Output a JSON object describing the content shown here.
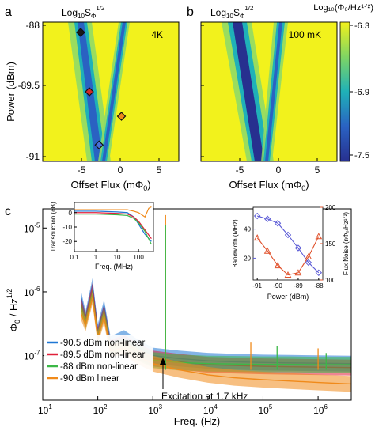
{
  "colors": {
    "cmap_low": "#27308f",
    "cmap_mid": "#1fb1b8",
    "cmap_high": "#f2f21c",
    "bw_color": "#5b5bd6",
    "fn_color": "#e0502a",
    "s_m905": "#1f77d4",
    "s_m895": "#e0203a",
    "s_m88": "#3cb847",
    "s_m90": "#f08a1a"
  },
  "panel_a": {
    "letter": "a",
    "title_base": "Log",
    "title_sub": "10",
    "title_S": "S",
    "title_phi": "Φ",
    "title_exp": "1/2",
    "temp_label": "4K",
    "ylabel": "Power (dBm)",
    "xlabel_main": "Offset Flux (mΦ",
    "xlabel_sub": "0",
    "xlabel_close": ")",
    "yticks": [
      "-88",
      "-89.5",
      "-91"
    ],
    "xticks": [
      "-5",
      "0",
      "5"
    ]
  },
  "panel_b": {
    "letter": "b",
    "title_base": "Log",
    "title_sub": "10",
    "title_S": "S",
    "title_phi": "Φ",
    "title_exp": "1/2",
    "temp_label": "100 mK",
    "xlabel_main": "Offset Flux (mΦ",
    "xlabel_sub": "0",
    "xlabel_close": ")",
    "xticks": [
      "-5",
      "0",
      "5"
    ]
  },
  "colorbar": {
    "title": "Log₁₀(Φ₀/Hz¹ᐟ²)",
    "ticks": [
      "-6.3",
      "-6.9",
      "-7.5"
    ]
  },
  "panel_c": {
    "letter": "c",
    "ylabel_main": "Φ",
    "ylabel_sub": "0",
    "ylabel_rest": " / Hz",
    "ylabel_exp": "1/2",
    "xlabel": "Freq. (Hz)",
    "yticks": [
      {
        "base": "10",
        "exp": "-5",
        "value": 1e-05
      },
      {
        "base": "10",
        "exp": "-6",
        "value": 1e-06
      },
      {
        "base": "10",
        "exp": "-7",
        "value": 1e-07
      }
    ],
    "xticks": [
      {
        "base": "10",
        "exp": "1",
        "value": 10
      },
      {
        "base": "10",
        "exp": "2",
        "value": 100
      },
      {
        "base": "10",
        "exp": "3",
        "value": 1000
      },
      {
        "base": "10",
        "exp": "4",
        "value": 10000
      },
      {
        "base": "10",
        "exp": "5",
        "value": 100000
      },
      {
        "base": "10",
        "exp": "6",
        "value": 1000000
      }
    ],
    "annotation": "Excitation at 1.7 kHz",
    "legend": [
      {
        "name": "-90.5 dBm non-linear",
        "color": "#1f77d4"
      },
      {
        "name": "-89.5 dBm non-linear",
        "color": "#e0203a"
      },
      {
        "name": "-88 dBm non-linear",
        "color": "#3cb847"
      },
      {
        "name": "-90 dBm linear",
        "color": "#f08a1a"
      }
    ]
  },
  "inset_left": {
    "ylabel": "Transduction (dB)",
    "xlabel": "Freq. (MHz)",
    "yticks": [
      "0",
      "-10",
      "-20"
    ],
    "xticks": [
      "0.1",
      "1",
      "10",
      "100"
    ]
  },
  "inset_right": {
    "ylabel_left": "Bandwidth (MHz)",
    "ylabel_right": "Flux Noise (nΦ₀/Hz¹ᐟ²)",
    "xlabel": "Power (dBm)",
    "yticks_left": [
      "40",
      "20"
    ],
    "yticks_right": [
      "200",
      "150",
      "100"
    ],
    "xticks": [
      "-91",
      "-90",
      "-89",
      "-88"
    ]
  },
  "chart_data": [
    {
      "type": "heatmap",
      "title": "Log10 SΦ^1/2",
      "xlabel": "Offset Flux (mΦ0)",
      "ylabel": "Power (dBm)",
      "xlim": [
        -8,
        6
      ],
      "ylim": [
        -91.2,
        -87.8
      ],
      "colorbar_range": [
        -7.6,
        -6.3
      ],
      "annotation": "4K",
      "markers": [
        {
          "x": -4.1,
          "y": -88.05,
          "color": "#1a1a1a"
        },
        {
          "x": -3.2,
          "y": -89.5,
          "color": "#d12a2a"
        },
        {
          "x": 0.1,
          "y": -90.1,
          "color": "#f08a1a"
        },
        {
          "x": -2.2,
          "y": -90.8,
          "color": "#4a6fd8"
        }
      ]
    },
    {
      "type": "heatmap",
      "title": "Log10 SΦ^1/2",
      "xlabel": "Offset Flux (mΦ0)",
      "xlim": [
        -8,
        6
      ],
      "ylim": [
        -91.2,
        -87.8
      ],
      "colorbar_range": [
        -7.6,
        -6.3
      ],
      "annotation": "100 mK"
    },
    {
      "type": "line",
      "xlabel": "Freq. (Hz)",
      "ylabel": "Φ0 / Hz^1/2",
      "xscale": "log",
      "yscale": "log",
      "xlim": [
        10,
        4000000
      ],
      "ylim": [
        2e-08,
        2e-05
      ],
      "annotation": "Excitation at 1.7 kHz",
      "series": [
        {
          "name": "-90.5 dBm non-linear",
          "x": [
            50,
            60,
            80,
            100,
            130,
            170,
            300,
            500,
            1000,
            3000,
            10000,
            30000,
            100000,
            300000,
            1000000,
            4000000
          ],
          "y": [
            8e-07,
            4e-07,
            1.3e-06,
            2.5e-07,
            6e-07,
            1.6e-07,
            2e-07,
            1.4e-07,
            1e-07,
            9e-08,
            8.3e-08,
            8e-08,
            7.8e-08,
            7.7e-08,
            7.6e-08,
            7.5e-08
          ]
        },
        {
          "name": "-89.5 dBm non-linear",
          "x": [
            50,
            60,
            80,
            100,
            130,
            170,
            300,
            500,
            1000,
            3000,
            10000,
            30000,
            100000,
            300000,
            1000000,
            4000000
          ],
          "y": [
            6.5e-07,
            3.5e-07,
            1.1e-06,
            2.2e-07,
            5e-07,
            1.4e-07,
            1.7e-07,
            1.2e-07,
            9e-08,
            8e-08,
            7.2e-08,
            7e-08,
            6.8e-08,
            6.7e-08,
            6.6e-08,
            6.5e-08
          ]
        },
        {
          "name": "-88 dBm non-linear",
          "x": [
            50,
            60,
            80,
            100,
            130,
            170,
            300,
            500,
            1000,
            3000,
            10000,
            30000,
            100000,
            300000,
            1000000,
            4000000
          ],
          "y": [
            5.5e-07,
            3.2e-07,
            9e-07,
            2e-07,
            4.5e-07,
            1.3e-07,
            1.5e-07,
            1.15e-07,
            8.5e-08,
            7.8e-08,
            7.5e-08,
            7.4e-08,
            7.3e-08,
            7.3e-08,
            7.2e-08,
            7.2e-08
          ]
        },
        {
          "name": "-90 dBm linear",
          "x": [
            50,
            60,
            80,
            100,
            130,
            170,
            300,
            500,
            1000,
            3000,
            10000,
            30000,
            100000,
            300000,
            1000000,
            4000000
          ],
          "y": [
            4.5e-07,
            3e-07,
            8e-07,
            1.9e-07,
            4e-07,
            1.2e-07,
            1.3e-07,
            1e-07,
            7.5e-08,
            6e-08,
            5e-08,
            4.5e-08,
            4.2e-08,
            4e-08,
            3.8e-08,
            3.6e-08
          ]
        }
      ],
      "spikes": [
        {
          "x": 1700,
          "y": 1.6e-05,
          "color": "#f08a1a"
        },
        {
          "x": 1700,
          "y": 1.1e-05,
          "color": "#3cb847"
        },
        {
          "x": 60000,
          "y": 1.6e-07,
          "color": "#f08a1a"
        },
        {
          "x": 180000,
          "y": 1.4e-07,
          "color": "#3cb847"
        },
        {
          "x": 1000000,
          "y": 1.3e-07,
          "color": "#f08a1a"
        },
        {
          "x": 1400000,
          "y": 1.1e-07,
          "color": "#3cb847"
        }
      ]
    },
    {
      "type": "line",
      "xlabel": "Freq. (MHz)",
      "ylabel": "Transduction (dB)",
      "xscale": "log",
      "xlim": [
        0.1,
        500
      ],
      "ylim": [
        -27,
        7
      ],
      "series": [
        {
          "color": "#1f77d4",
          "x": [
            0.1,
            1,
            10,
            30,
            60,
            100,
            200,
            400
          ],
          "y": [
            1,
            1,
            0.5,
            0,
            -3,
            -8,
            -15,
            -20
          ]
        },
        {
          "color": "#e0203a",
          "x": [
            0.1,
            1,
            10,
            30,
            60,
            100,
            200,
            400
          ],
          "y": [
            0,
            0,
            -0.5,
            -1,
            -3,
            -6,
            -12,
            -18
          ]
        },
        {
          "color": "#3cb847",
          "x": [
            0.1,
            1,
            10,
            30,
            60,
            100,
            200,
            400
          ],
          "y": [
            -1,
            -1,
            -1.5,
            -2,
            -4,
            -7,
            -13,
            -22
          ]
        },
        {
          "color": "#f08a1a",
          "x": [
            0.1,
            1,
            10,
            30,
            60,
            100,
            200,
            300,
            400
          ],
          "y": [
            2,
            2,
            2,
            2,
            1,
            0,
            -3,
            3,
            4
          ]
        }
      ]
    },
    {
      "type": "line",
      "xlabel": "Power (dBm)",
      "xlim": [
        -91.2,
        -87.8
      ],
      "ylim_left": [
        5,
        55
      ],
      "ylim_right": [
        100,
        200
      ],
      "series": [
        {
          "axis": "left",
          "color": "#5b5bd6",
          "marker": "diamond",
          "x": [
            -91,
            -90.5,
            -90,
            -89.5,
            -89,
            -88.5,
            -88
          ],
          "y": [
            49,
            47,
            44,
            36,
            27,
            17,
            10
          ]
        },
        {
          "axis": "right",
          "color": "#e0502a",
          "marker": "triangle",
          "x": [
            -91,
            -90.5,
            -90,
            -89.5,
            -89,
            -88.5,
            -88
          ],
          "y": [
            158,
            140,
            120,
            107,
            110,
            132,
            160
          ]
        }
      ]
    }
  ]
}
